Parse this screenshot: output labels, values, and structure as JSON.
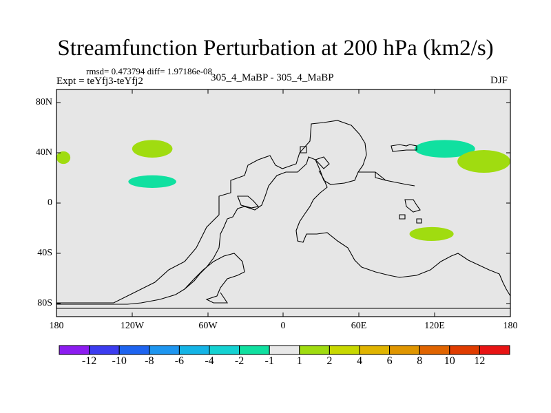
{
  "title": "Streamfunction Perturbation at 200 hPa (km2/s)",
  "stats": "rmsd= 0.473794 diff= 1.97186e-08",
  "expt": "Expt = teYfj3-teYfj2",
  "cases": "305_4_MaBP - 305_4_MaBP",
  "season": "DJF",
  "map": {
    "background_color": "#e6e6e6",
    "lat_labels": [
      "80N",
      "40N",
      "0",
      "40S",
      "80S"
    ],
    "lon_labels": [
      "180",
      "120W",
      "60W",
      "0",
      "60E",
      "120E",
      "180"
    ]
  },
  "colorbar": {
    "colors": [
      "#8c1cf0",
      "#3c3cf0",
      "#1e64f0",
      "#1e96f0",
      "#14b4e6",
      "#14d2d2",
      "#10e0a0",
      "#e8e8e8",
      "#a0dc10",
      "#c8d800",
      "#e0b400",
      "#e09600",
      "#e06400",
      "#e03c00",
      "#e81414"
    ],
    "labels": [
      "-12",
      "-10",
      "-8",
      "-6",
      "-4",
      "-2",
      "-1",
      "1",
      "2",
      "4",
      "6",
      "8",
      "10",
      "12"
    ]
  },
  "chart_data": {
    "type": "map",
    "projection": "cylindrical-equidistant",
    "lon_range": [
      -180,
      180
    ],
    "lat_range": [
      -90,
      90
    ],
    "anomalies": [
      {
        "name": "north-pacific-west-positive",
        "sign": "positive",
        "color": "#a0dc10",
        "lon_range": [
          -120,
          -88
        ],
        "lat_range": [
          36,
          50
        ]
      },
      {
        "name": "north-pacific-east-negative",
        "sign": "negative",
        "color": "#10e0a0",
        "lon_range": [
          -123,
          -85
        ],
        "lat_range": [
          12,
          22
        ]
      },
      {
        "name": "dateline-positive",
        "sign": "positive",
        "color": "#a0dc10",
        "lon_range": [
          -180,
          -169
        ],
        "lat_range": [
          31,
          41
        ]
      },
      {
        "name": "west-pacific-negative",
        "sign": "negative",
        "color": "#10e0a0",
        "lon_range": [
          104,
          152
        ],
        "lat_range": [
          36,
          50
        ]
      },
      {
        "name": "west-pacific-positive",
        "sign": "positive",
        "color": "#a0dc10",
        "lon_range": [
          138,
          180
        ],
        "lat_range": [
          24,
          42
        ]
      },
      {
        "name": "indian-ocean-positive",
        "sign": "positive",
        "color": "#a0dc10",
        "lon_range": [
          100,
          135
        ],
        "lat_range": [
          -30,
          -19
        ]
      }
    ]
  }
}
